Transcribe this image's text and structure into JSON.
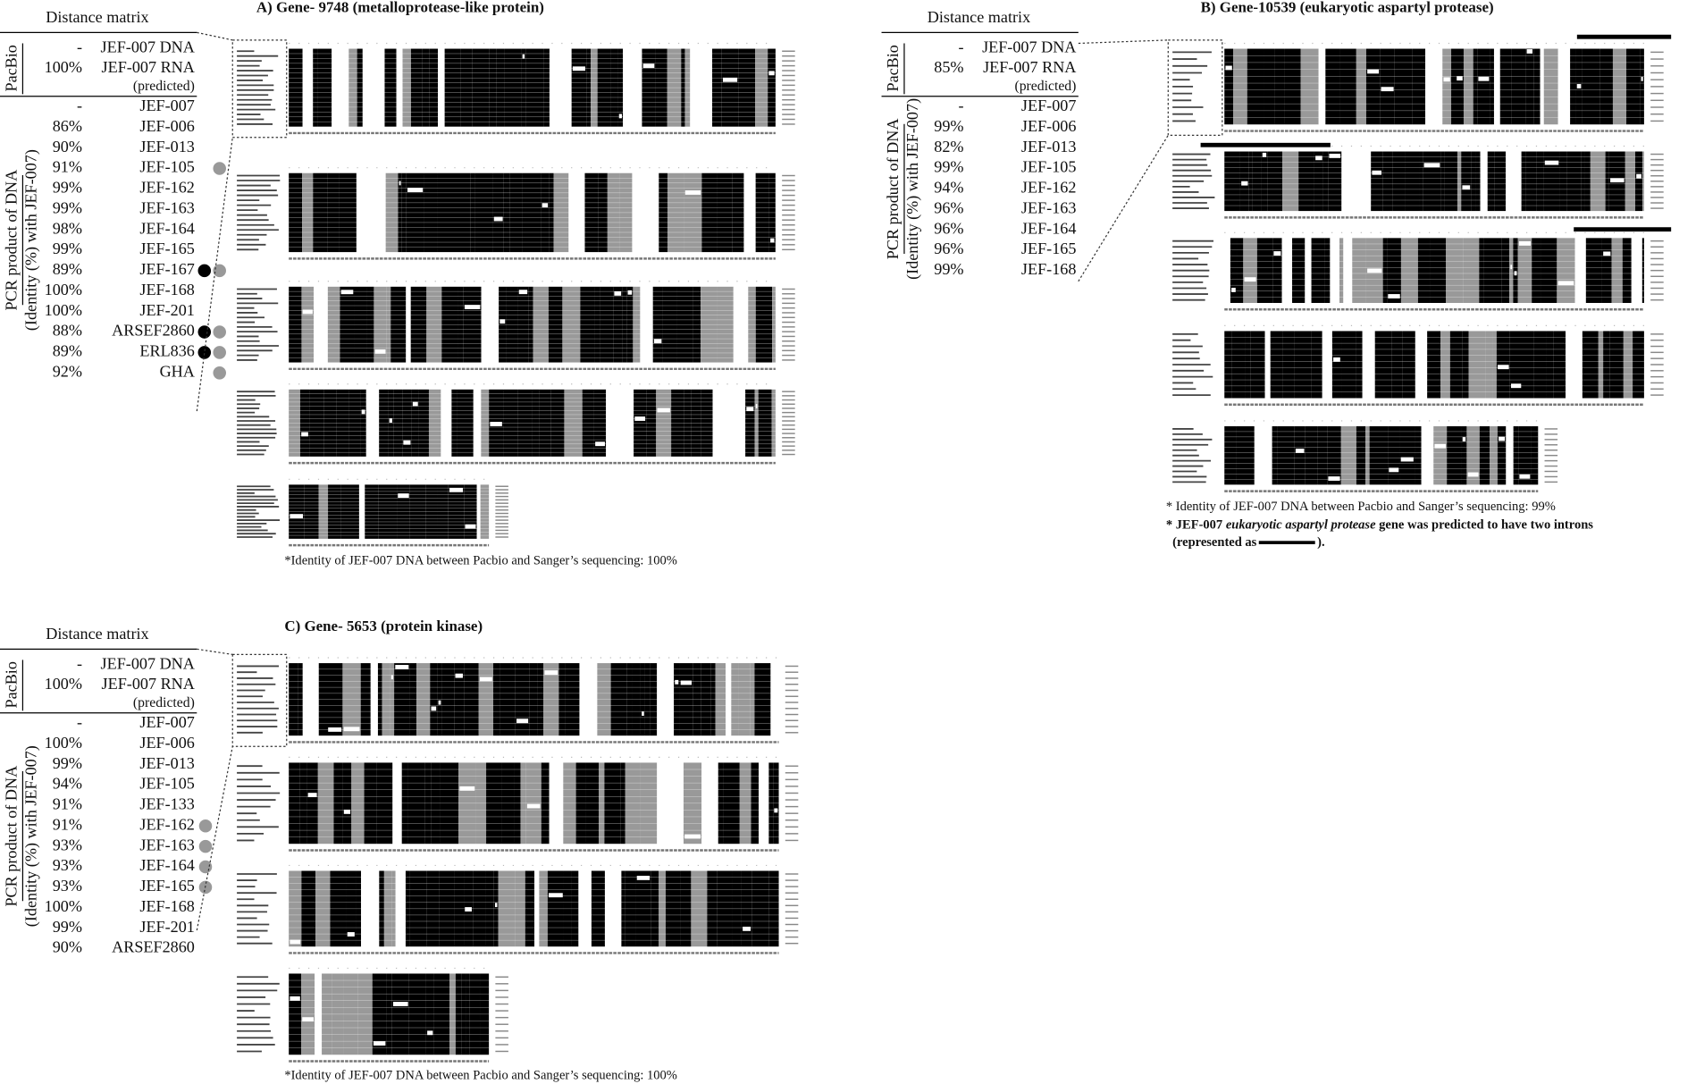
{
  "panels": [
    {
      "title": "A) Gene- 9748 (metalloprotease-like protein)",
      "matrix_title": "Distance matrix",
      "pacbio_label": "PacBio",
      "pacbio_rows": [
        {
          "identity": "-",
          "name": "JEF-007 DNA"
        },
        {
          "identity": "100%",
          "name": "JEF-007 RNA",
          "note": "(predicted)"
        }
      ],
      "pcr_label": [
        "PCR product of DNA",
        "(Identity (%) with JEF-007)"
      ],
      "pcr_rows": [
        {
          "identity": "-",
          "name": "JEF-007",
          "dots": []
        },
        {
          "identity": "86%",
          "name": "JEF-006",
          "dots": []
        },
        {
          "identity": "90%",
          "name": "JEF-013",
          "dots": []
        },
        {
          "identity": "91%",
          "name": "JEF-105",
          "dots": [
            "gray"
          ]
        },
        {
          "identity": "99%",
          "name": "JEF-162",
          "dots": []
        },
        {
          "identity": "99%",
          "name": "JEF-163",
          "dots": []
        },
        {
          "identity": "98%",
          "name": "JEF-164",
          "dots": []
        },
        {
          "identity": "99%",
          "name": "JEF-165",
          "dots": []
        },
        {
          "identity": "89%",
          "name": "JEF-167",
          "dots": [
            "black",
            "gray"
          ]
        },
        {
          "identity": "100%",
          "name": "JEF-168",
          "dots": []
        },
        {
          "identity": "100%",
          "name": "JEF-201",
          "dots": []
        },
        {
          "identity": "88%",
          "name": "ARSEF2860",
          "dots": [
            "black",
            "gray"
          ]
        },
        {
          "identity": "89%",
          "name": "ERL836",
          "dots": [
            "black",
            "gray"
          ]
        },
        {
          "identity": "92%",
          "name": "GHA",
          "dots": [
            "gray"
          ]
        }
      ],
      "footnotes": [
        [
          "*Identity of JEF-007 DNA between Pacbio and Sanger’s sequencing: 100%"
        ]
      ]
    },
    {
      "title": "B) Gene-10539 (eukaryotic aspartyl protease)",
      "matrix_title": "Distance matrix",
      "pacbio_label": "PacBio",
      "pacbio_rows": [
        {
          "identity": "-",
          "name": "JEF-007 DNA"
        },
        {
          "identity": "85%",
          "name": "JEF-007 RNA",
          "note": "(predicted)"
        }
      ],
      "pcr_label": [
        "PCR product of DNA",
        "(Identity (%) with JEF-007)"
      ],
      "pcr_rows": [
        {
          "identity": "-",
          "name": "JEF-007",
          "dots": []
        },
        {
          "identity": "99%",
          "name": "JEF-006",
          "dots": []
        },
        {
          "identity": "82%",
          "name": "JEF-013",
          "dots": []
        },
        {
          "identity": "99%",
          "name": "JEF-105",
          "dots": []
        },
        {
          "identity": "94%",
          "name": "JEF-162",
          "dots": []
        },
        {
          "identity": "96%",
          "name": "JEF-163",
          "dots": []
        },
        {
          "identity": "96%",
          "name": "JEF-164",
          "dots": []
        },
        {
          "identity": "96%",
          "name": "JEF-165",
          "dots": []
        },
        {
          "identity": "99%",
          "name": "JEF-168",
          "dots": []
        }
      ],
      "footnotes": [
        [
          "* Identity of JEF-007 DNA between Pacbio and Sanger’s sequencing: 99%"
        ],
        [
          "* JEF-007 ",
          "eukaryotic aspartyl protease",
          " gene was predicted to have two introns"
        ],
        [
          "(represented as ",
          "). "
        ]
      ]
    },
    {
      "title": "C) Gene- 5653 (protein kinase)",
      "matrix_title": "Distance matrix",
      "pacbio_label": "PacBio",
      "pacbio_rows": [
        {
          "identity": "-",
          "name": "JEF-007 DNA"
        },
        {
          "identity": "100%",
          "name": "JEF-007 RNA",
          "note": "(predicted)"
        }
      ],
      "pcr_label": [
        "PCR product of DNA",
        "(Identity (%) with JEF-007)"
      ],
      "pcr_rows": [
        {
          "identity": "-",
          "name": "JEF-007",
          "dots": []
        },
        {
          "identity": "100%",
          "name": "JEF-006",
          "dots": []
        },
        {
          "identity": "99%",
          "name": "JEF-013",
          "dots": []
        },
        {
          "identity": "94%",
          "name": "JEF-105",
          "dots": []
        },
        {
          "identity": "91%",
          "name": "JEF-133",
          "dots": []
        },
        {
          "identity": "91%",
          "name": "JEF-162",
          "dots": [
            "gray"
          ]
        },
        {
          "identity": "93%",
          "name": "JEF-163",
          "dots": [
            "gray"
          ]
        },
        {
          "identity": "93%",
          "name": "JEF-164",
          "dots": [
            "gray"
          ]
        },
        {
          "identity": "93%",
          "name": "JEF-165",
          "dots": [
            "gray"
          ]
        },
        {
          "identity": "100%",
          "name": "JEF-168",
          "dots": []
        },
        {
          "identity": "99%",
          "name": "JEF-201",
          "dots": []
        },
        {
          "identity": "90%",
          "name": "ARSEF2860",
          "dots": []
        }
      ],
      "footnotes": [
        [
          "*Identity of JEF-007 DNA between Pacbio and Sanger’s sequencing: 100%"
        ]
      ]
    }
  ]
}
